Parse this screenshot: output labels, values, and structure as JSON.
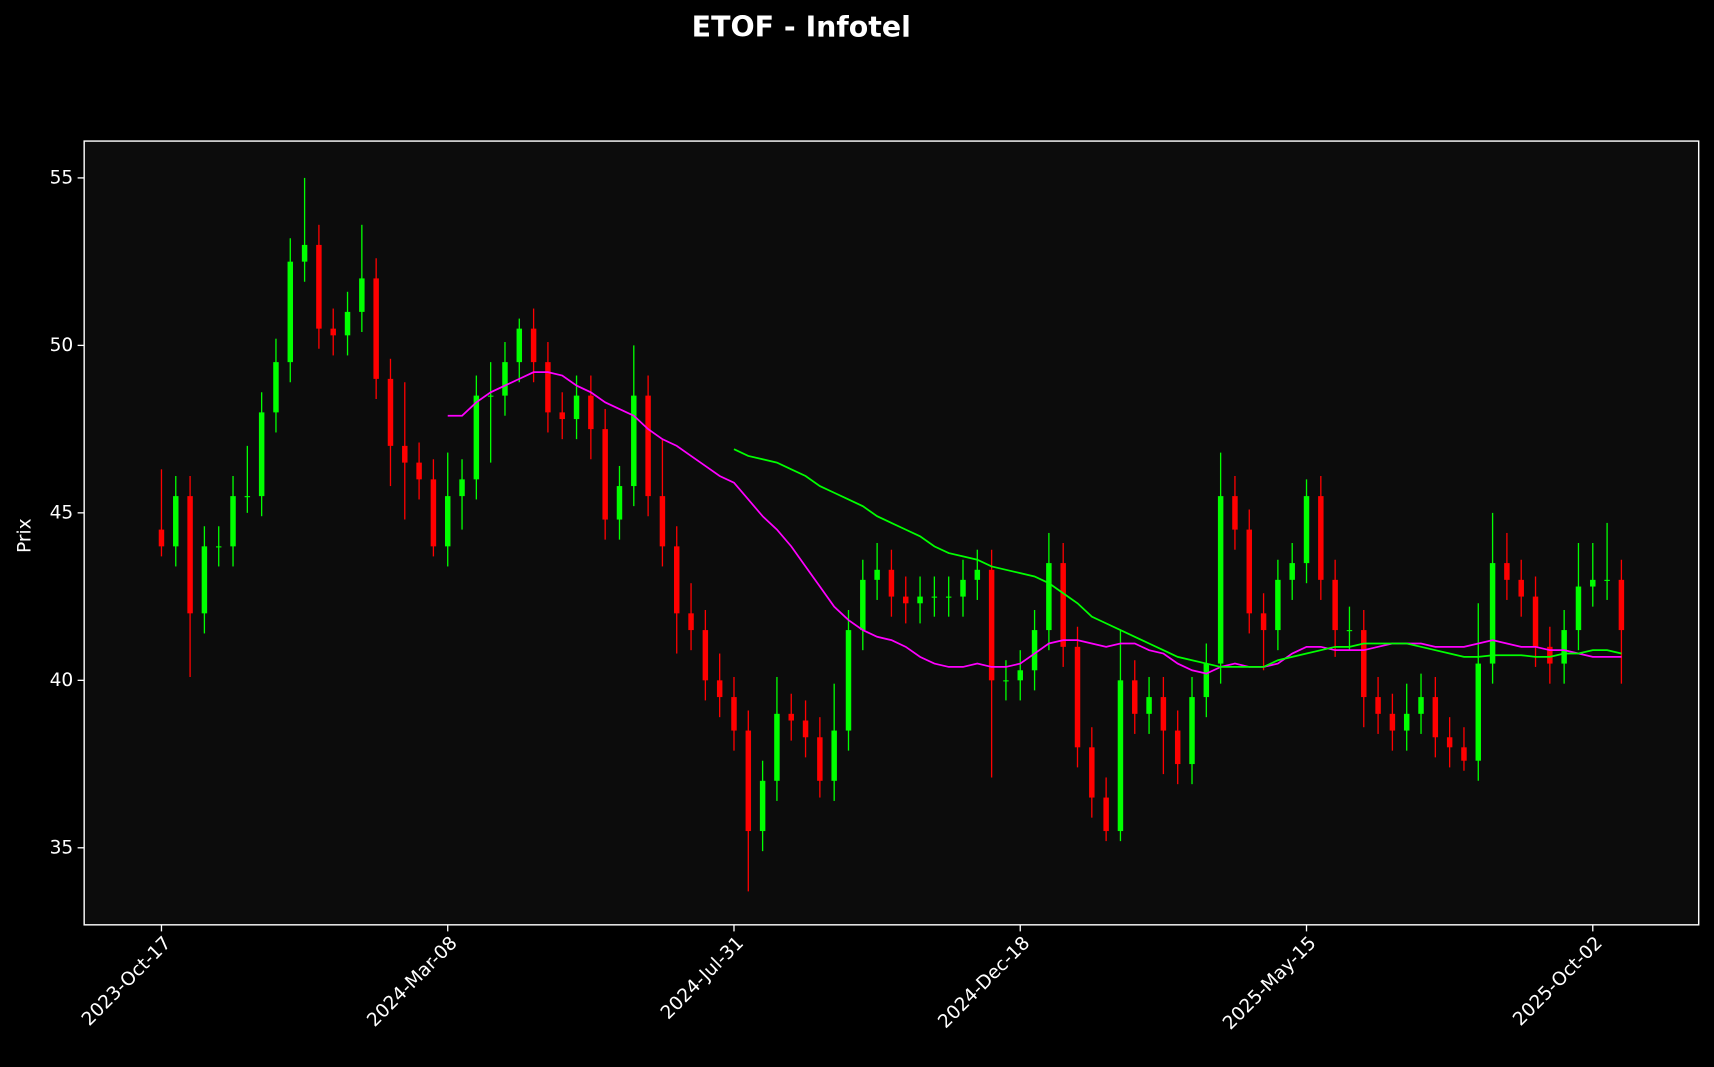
{
  "chart_data": {
    "type": "candlestick",
    "title": "ETOF - Infotel",
    "y_label": "Prix",
    "x": [
      0,
      5,
      10,
      15,
      20,
      25,
      30,
      35,
      40,
      45,
      50,
      55,
      60,
      65,
      70,
      75,
      80,
      85,
      90,
      95,
      100,
      105,
      110,
      115,
      120,
      125,
      130,
      135,
      140,
      145,
      150,
      155,
      160,
      165,
      170,
      175,
      180,
      185,
      190,
      195,
      200,
      205,
      210,
      215,
      220,
      225,
      230,
      235,
      240,
      245,
      250,
      255,
      260,
      265,
      270,
      275,
      280,
      285,
      290,
      295,
      300,
      305,
      310,
      315,
      320,
      325,
      330,
      335,
      340,
      345,
      350,
      355,
      360,
      365,
      370,
      375,
      380,
      385,
      390,
      395,
      400,
      405,
      410,
      415,
      420,
      425,
      430,
      435,
      440,
      445,
      450,
      455,
      460,
      465,
      470,
      475,
      480,
      485,
      490,
      495,
      500,
      505,
      510
    ],
    "open": [
      44.5,
      44,
      45.5,
      42,
      44,
      44,
      45.5,
      45.5,
      48,
      49.5,
      52.5,
      53,
      50.5,
      50.3,
      51,
      52,
      49,
      47,
      46.5,
      46,
      44,
      45.5,
      46,
      48.5,
      48.5,
      49.5,
      50.5,
      49.5,
      48,
      47.8,
      48.5,
      47.5,
      44.8,
      45.8,
      48.5,
      45.5,
      44,
      42,
      41.5,
      40,
      39.5,
      38.5,
      35.5,
      37,
      39,
      38.8,
      38.3,
      37,
      38.5,
      41.5,
      43,
      43.3,
      42.5,
      42.3,
      42.5,
      42.5,
      42.5,
      43,
      43.3,
      40,
      40,
      40.3,
      41.5,
      43.5,
      41,
      38,
      36.5,
      35.5,
      40,
      39,
      39.5,
      38.5,
      37.5,
      39.5,
      40.5,
      45.5,
      44.5,
      42,
      41.5,
      43,
      43.5,
      45.5,
      43,
      41.5,
      41.5,
      39.5,
      39,
      38.5,
      39,
      39.5,
      38.3,
      38,
      37.6,
      40.5,
      43.5,
      43,
      42.5,
      41,
      40.5,
      41.5,
      42.8,
      43,
      43
    ],
    "high": [
      46.3,
      46.1,
      46.1,
      44.6,
      44.6,
      46.1,
      47,
      48.6,
      50.2,
      53.2,
      55,
      53.6,
      51.1,
      51.6,
      53.6,
      52.6,
      49.6,
      48.9,
      47.1,
      46.6,
      46.8,
      46.6,
      49.1,
      49.5,
      50.1,
      50.8,
      51.1,
      50.1,
      48.6,
      49.1,
      49.1,
      48.1,
      46.4,
      50,
      49.1,
      47.2,
      44.6,
      42.9,
      42.1,
      40.8,
      40.1,
      39.1,
      37.6,
      40.1,
      39.6,
      39.4,
      38.9,
      39.9,
      42.1,
      43.6,
      44.1,
      43.9,
      43.1,
      43.1,
      43.1,
      43.1,
      43.6,
      43.9,
      43.9,
      40.6,
      40.9,
      42.1,
      44.4,
      44.1,
      41.6,
      38.6,
      37.1,
      41.5,
      40.6,
      40.1,
      40.1,
      39.1,
      40.1,
      41.1,
      46.8,
      46.1,
      45.1,
      42.6,
      43.6,
      44.1,
      46,
      46.1,
      43.6,
      42.2,
      42.1,
      40.1,
      39.6,
      39.9,
      40.2,
      40.1,
      38.9,
      38.6,
      42.3,
      45,
      44.4,
      43.6,
      43.1,
      41.6,
      42.1,
      44.1,
      44.1,
      44.7,
      43.6
    ],
    "low": [
      43.7,
      43.4,
      40.1,
      41.4,
      43.4,
      43.4,
      45,
      44.9,
      47.4,
      48.9,
      51.9,
      49.9,
      49.7,
      49.7,
      50.4,
      48.4,
      45.8,
      44.8,
      45.4,
      43.7,
      43.4,
      44.5,
      45.4,
      46.5,
      47.9,
      48.9,
      48.9,
      47.4,
      47.2,
      47.2,
      46.6,
      44.2,
      44.2,
      45.2,
      44.9,
      43.4,
      40.8,
      40.9,
      39.4,
      38.9,
      37.9,
      33.7,
      34.9,
      36.4,
      38.2,
      37.7,
      36.5,
      36.4,
      37.9,
      40.9,
      42.4,
      41.9,
      41.7,
      41.7,
      41.9,
      41.9,
      41.9,
      42.4,
      37.1,
      39.4,
      39.4,
      39.7,
      40.9,
      40.4,
      37.4,
      35.9,
      35.2,
      35.2,
      38.4,
      38.4,
      37.2,
      36.9,
      36.9,
      38.9,
      39.9,
      43.9,
      41.4,
      40.3,
      40.9,
      42.4,
      42.9,
      42.4,
      40.7,
      40.9,
      38.6,
      38.4,
      37.9,
      37.9,
      38.4,
      37.7,
      37.4,
      37.3,
      37,
      39.9,
      42.4,
      41.9,
      40.4,
      39.9,
      39.9,
      40.9,
      42.2,
      42.4,
      39.9
    ],
    "close": [
      44,
      45.5,
      42,
      44,
      44,
      45.5,
      45.5,
      48,
      49.5,
      52.5,
      53,
      50.5,
      50.3,
      51,
      52,
      49,
      47,
      46.5,
      46,
      44,
      45.5,
      46,
      48.5,
      48.5,
      49.5,
      50.5,
      49.5,
      48,
      47.8,
      48.5,
      47.5,
      44.8,
      45.8,
      48.5,
      45.5,
      44,
      42,
      41.5,
      40,
      39.5,
      38.5,
      35.5,
      37,
      39,
      38.8,
      38.3,
      37,
      38.5,
      41.5,
      43,
      43.3,
      42.5,
      42.3,
      42.5,
      42.5,
      42.5,
      43,
      43.3,
      40,
      40,
      40.3,
      41.5,
      43.5,
      41,
      38,
      36.5,
      35.5,
      40,
      39,
      39.5,
      38.5,
      37.5,
      39.5,
      40.5,
      45.5,
      44.5,
      42,
      41.5,
      43,
      43.5,
      45.5,
      43,
      41.5,
      41.5,
      39.5,
      39,
      38.5,
      39,
      39.5,
      38.3,
      38,
      37.6,
      40.5,
      43.5,
      43,
      42.5,
      41,
      40.5,
      41.5,
      42.8,
      43,
      43,
      41.5
    ],
    "up_color": "#00ff00",
    "down_color": "#ff0000",
    "moving_averages": [
      {
        "color": "#ff00ff",
        "values": [
          null,
          null,
          null,
          null,
          null,
          null,
          null,
          null,
          null,
          null,
          null,
          null,
          null,
          null,
          null,
          null,
          null,
          null,
          null,
          null,
          47.9,
          47.9,
          48.3,
          48.6,
          48.8,
          49.0,
          49.2,
          49.2,
          49.1,
          48.8,
          48.6,
          48.3,
          48.1,
          47.9,
          47.5,
          47.2,
          47.0,
          46.7,
          46.4,
          46.1,
          45.9,
          45.4,
          44.9,
          44.5,
          44.0,
          43.4,
          42.8,
          42.2,
          41.8,
          41.5,
          41.3,
          41.2,
          41.0,
          40.7,
          40.5,
          40.4,
          40.4,
          40.5,
          40.4,
          40.4,
          40.5,
          40.8,
          41.1,
          41.2,
          41.2,
          41.1,
          41.0,
          41.1,
          41.1,
          40.9,
          40.8,
          40.5,
          40.3,
          40.2,
          40.4,
          40.5,
          40.4,
          40.4,
          40.5,
          40.8,
          41.0,
          41.0,
          40.9,
          40.9,
          40.9,
          41.0,
          41.1,
          41.1,
          41.1,
          41.0,
          41.0,
          41.0,
          41.1,
          41.2,
          41.1,
          41.0,
          41.0,
          40.9,
          40.9,
          40.8,
          40.7,
          40.7,
          40.7
        ]
      },
      {
        "color": "#00ff00",
        "values": [
          null,
          null,
          null,
          null,
          null,
          null,
          null,
          null,
          null,
          null,
          null,
          null,
          null,
          null,
          null,
          null,
          null,
          null,
          null,
          null,
          null,
          null,
          null,
          null,
          null,
          null,
          null,
          null,
          null,
          null,
          null,
          null,
          null,
          null,
          null,
          null,
          null,
          null,
          null,
          null,
          46.9,
          46.7,
          46.6,
          46.5,
          46.3,
          46.1,
          45.8,
          45.6,
          45.4,
          45.2,
          44.9,
          44.7,
          44.5,
          44.3,
          44.0,
          43.8,
          43.7,
          43.6,
          43.4,
          43.3,
          43.2,
          43.1,
          42.9,
          42.6,
          42.3,
          41.9,
          41.7,
          41.5,
          41.3,
          41.1,
          40.9,
          40.7,
          40.6,
          40.5,
          40.4,
          40.4,
          40.4,
          40.4,
          40.6,
          40.7,
          40.8,
          40.9,
          41.0,
          41.0,
          41.1,
          41.1,
          41.1,
          41.1,
          41.0,
          40.9,
          40.8,
          40.7,
          40.7,
          40.75,
          40.75,
          40.75,
          40.7,
          40.7,
          40.8,
          40.8,
          40.9,
          40.9,
          40.8
        ]
      }
    ],
    "xlim": [
      -27,
      537
    ],
    "ylim": [
      32.7,
      56.1
    ],
    "xticks": [
      {
        "value": 0,
        "label": "2023-Oct-17"
      },
      {
        "value": 100,
        "label": "2024-Mar-08"
      },
      {
        "value": 200,
        "label": "2024-Jul-31"
      },
      {
        "value": 300,
        "label": "2024-Dec-18"
      },
      {
        "value": 400,
        "label": "2025-May-15"
      },
      {
        "value": 500,
        "label": "2025-Oct-02"
      }
    ],
    "yticks": [
      35,
      40,
      45,
      50,
      55
    ],
    "background": "#0c0c0c"
  }
}
